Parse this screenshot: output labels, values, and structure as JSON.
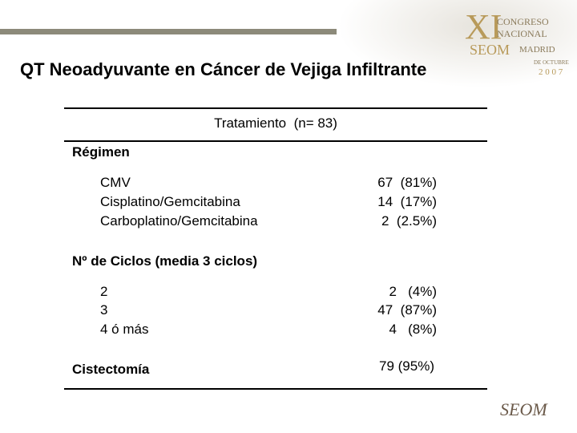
{
  "header": {
    "title": "QT Neoadyuvante en Cáncer de Vejiga Infiltrante"
  },
  "logo": {
    "numeral": "XI",
    "line1": "Congreso",
    "line2": "Nacional",
    "society": "SEOM",
    "city": "Madrid",
    "month": "de Octubre",
    "year": "2 0 0 7"
  },
  "table": {
    "header": "Tratamiento  (n= 83)",
    "sections": [
      {
        "title": "Régimen",
        "rows": [
          [
            "CMV",
            "67  (81%)"
          ],
          [
            "Cisplatino/Gemcitabina",
            "14  (17%)"
          ],
          [
            "Carboplatino/Gemcitabina",
            "2  (2.5%)"
          ]
        ]
      },
      {
        "title": "Nº de Ciclos (media 3 ciclos)",
        "rows": [
          [
            "2",
            "2   (4%)"
          ],
          [
            "3",
            "47  (87%)"
          ],
          [
            "4 ó más",
            "4   (8%)"
          ]
        ]
      },
      {
        "title": "Cistectomía",
        "value": "79 (95%)"
      }
    ]
  },
  "footer": {
    "logo": "SEOM"
  }
}
